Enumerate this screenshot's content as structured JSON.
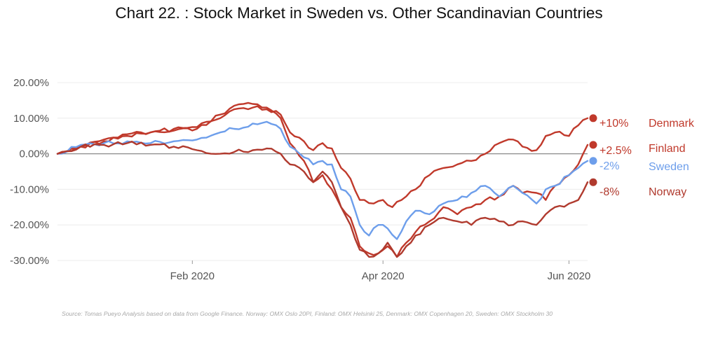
{
  "chart_data": {
    "type": "line",
    "title": "Chart 22. : Stock Market in Sweden vs. Other Scandinavian Countries",
    "xlabel": "",
    "ylabel": "",
    "x_ticks": [
      {
        "label": "Feb 2020",
        "index": 29
      },
      {
        "label": "Apr 2020",
        "index": 70
      },
      {
        "label": "Jun 2020",
        "index": 110
      }
    ],
    "x_range": [
      0,
      114
    ],
    "ylim": [
      -0.3,
      0.2
    ],
    "y_ticks": [
      {
        "label": "20.00%",
        "value": 0.2
      },
      {
        "label": "10.00%",
        "value": 0.1
      },
      {
        "label": "0.00%",
        "value": 0
      },
      {
        "label": "-10.00%",
        "value": -0.1
      },
      {
        "label": "-20.00%",
        "value": -0.2
      },
      {
        "label": "-30.00%",
        "value": -0.3
      }
    ],
    "series": [
      {
        "name": "Denmark",
        "end_label": "+10%",
        "color": "#c0392b",
        "anchors": [
          [
            0,
            0
          ],
          [
            5,
            0.02
          ],
          [
            10,
            0.04
          ],
          [
            15,
            0.055
          ],
          [
            20,
            0.06
          ],
          [
            25,
            0.065
          ],
          [
            30,
            0.07
          ],
          [
            35,
            0.1
          ],
          [
            38,
            0.125
          ],
          [
            42,
            0.13
          ],
          [
            45,
            0.125
          ],
          [
            48,
            0.11
          ],
          [
            50,
            0.06
          ],
          [
            53,
            0.035
          ],
          [
            55,
            0.01
          ],
          [
            57,
            0.03
          ],
          [
            59,
            0.015
          ],
          [
            61,
            -0.04
          ],
          [
            63,
            -0.07
          ],
          [
            65,
            -0.13
          ],
          [
            68,
            -0.14
          ],
          [
            70,
            -0.13
          ],
          [
            72,
            -0.15
          ],
          [
            74,
            -0.13
          ],
          [
            77,
            -0.1
          ],
          [
            80,
            -0.06
          ],
          [
            83,
            -0.04
          ],
          [
            86,
            -0.03
          ],
          [
            89,
            -0.02
          ],
          [
            92,
            0
          ],
          [
            95,
            0.03
          ],
          [
            98,
            0.04
          ],
          [
            100,
            0.02
          ],
          [
            103,
            0.01
          ],
          [
            105,
            0.05
          ],
          [
            107,
            0.06
          ],
          [
            110,
            0.05
          ],
          [
            112,
            0.08
          ],
          [
            114,
            0.1
          ]
        ]
      },
      {
        "name": "Finland",
        "end_label": "+2.5%",
        "color": "#c0392b",
        "anchors": [
          [
            0,
            0
          ],
          [
            5,
            0.02
          ],
          [
            10,
            0.035
          ],
          [
            15,
            0.05
          ],
          [
            20,
            0.06
          ],
          [
            25,
            0.07
          ],
          [
            30,
            0.075
          ],
          [
            35,
            0.11
          ],
          [
            38,
            0.135
          ],
          [
            42,
            0.14
          ],
          [
            45,
            0.13
          ],
          [
            48,
            0.1
          ],
          [
            50,
            0.03
          ],
          [
            53,
            -0.02
          ],
          [
            55,
            -0.08
          ],
          [
            57,
            -0.06
          ],
          [
            59,
            -0.1
          ],
          [
            61,
            -0.15
          ],
          [
            63,
            -0.18
          ],
          [
            65,
            -0.26
          ],
          [
            67,
            -0.28
          ],
          [
            69,
            -0.28
          ],
          [
            71,
            -0.26
          ],
          [
            73,
            -0.29
          ],
          [
            75,
            -0.25
          ],
          [
            77,
            -0.22
          ],
          [
            80,
            -0.19
          ],
          [
            83,
            -0.15
          ],
          [
            86,
            -0.17
          ],
          [
            89,
            -0.15
          ],
          [
            92,
            -0.13
          ],
          [
            95,
            -0.12
          ],
          [
            98,
            -0.09
          ],
          [
            100,
            -0.11
          ],
          [
            103,
            -0.11
          ],
          [
            105,
            -0.13
          ],
          [
            107,
            -0.09
          ],
          [
            110,
            -0.06
          ],
          [
            112,
            -0.03
          ],
          [
            114,
            0.025
          ]
        ]
      },
      {
        "name": "Sweden",
        "end_label": "-2%",
        "color": "#6d9eeb",
        "anchors": [
          [
            0,
            0
          ],
          [
            5,
            0.025
          ],
          [
            10,
            0.03
          ],
          [
            15,
            0.035
          ],
          [
            20,
            0.03
          ],
          [
            25,
            0.035
          ],
          [
            30,
            0.04
          ],
          [
            35,
            0.06
          ],
          [
            38,
            0.07
          ],
          [
            42,
            0.085
          ],
          [
            45,
            0.09
          ],
          [
            48,
            0.07
          ],
          [
            50,
            0.02
          ],
          [
            53,
            -0.01
          ],
          [
            55,
            -0.03
          ],
          [
            57,
            -0.02
          ],
          [
            59,
            -0.03
          ],
          [
            61,
            -0.1
          ],
          [
            63,
            -0.12
          ],
          [
            65,
            -0.2
          ],
          [
            67,
            -0.23
          ],
          [
            69,
            -0.2
          ],
          [
            71,
            -0.21
          ],
          [
            73,
            -0.24
          ],
          [
            75,
            -0.19
          ],
          [
            77,
            -0.16
          ],
          [
            80,
            -0.17
          ],
          [
            83,
            -0.14
          ],
          [
            86,
            -0.13
          ],
          [
            89,
            -0.11
          ],
          [
            92,
            -0.09
          ],
          [
            95,
            -0.12
          ],
          [
            98,
            -0.09
          ],
          [
            100,
            -0.11
          ],
          [
            103,
            -0.14
          ],
          [
            105,
            -0.1
          ],
          [
            107,
            -0.09
          ],
          [
            110,
            -0.06
          ],
          [
            112,
            -0.04
          ],
          [
            114,
            -0.02
          ]
        ]
      },
      {
        "name": "Norway",
        "end_label": "-8%",
        "color": "#b03a2e",
        "anchors": [
          [
            0,
            0
          ],
          [
            5,
            0.02
          ],
          [
            10,
            0.025
          ],
          [
            15,
            0.03
          ],
          [
            20,
            0.025
          ],
          [
            25,
            0.02
          ],
          [
            30,
            0.01
          ],
          [
            35,
            0.0
          ],
          [
            38,
            0.005
          ],
          [
            42,
            0.01
          ],
          [
            45,
            0.015
          ],
          [
            48,
            0.0
          ],
          [
            50,
            -0.03
          ],
          [
            53,
            -0.05
          ],
          [
            55,
            -0.08
          ],
          [
            57,
            -0.05
          ],
          [
            59,
            -0.08
          ],
          [
            61,
            -0.15
          ],
          [
            63,
            -0.2
          ],
          [
            65,
            -0.27
          ],
          [
            67,
            -0.29
          ],
          [
            69,
            -0.28
          ],
          [
            71,
            -0.25
          ],
          [
            73,
            -0.29
          ],
          [
            75,
            -0.26
          ],
          [
            77,
            -0.23
          ],
          [
            80,
            -0.2
          ],
          [
            83,
            -0.18
          ],
          [
            86,
            -0.19
          ],
          [
            89,
            -0.2
          ],
          [
            92,
            -0.18
          ],
          [
            95,
            -0.19
          ],
          [
            98,
            -0.2
          ],
          [
            100,
            -0.19
          ],
          [
            103,
            -0.2
          ],
          [
            105,
            -0.17
          ],
          [
            107,
            -0.15
          ],
          [
            110,
            -0.14
          ],
          [
            112,
            -0.13
          ],
          [
            114,
            -0.08
          ]
        ]
      }
    ],
    "source": "Source: Tomas Pueyo Analysis based on data from Google Finance. Norway: OMX Oslo 20PI, Finland: OMX Helsinki 25, Denmark: OMX Copenhagen 20, Sweden: OMX Stockholm 30"
  }
}
